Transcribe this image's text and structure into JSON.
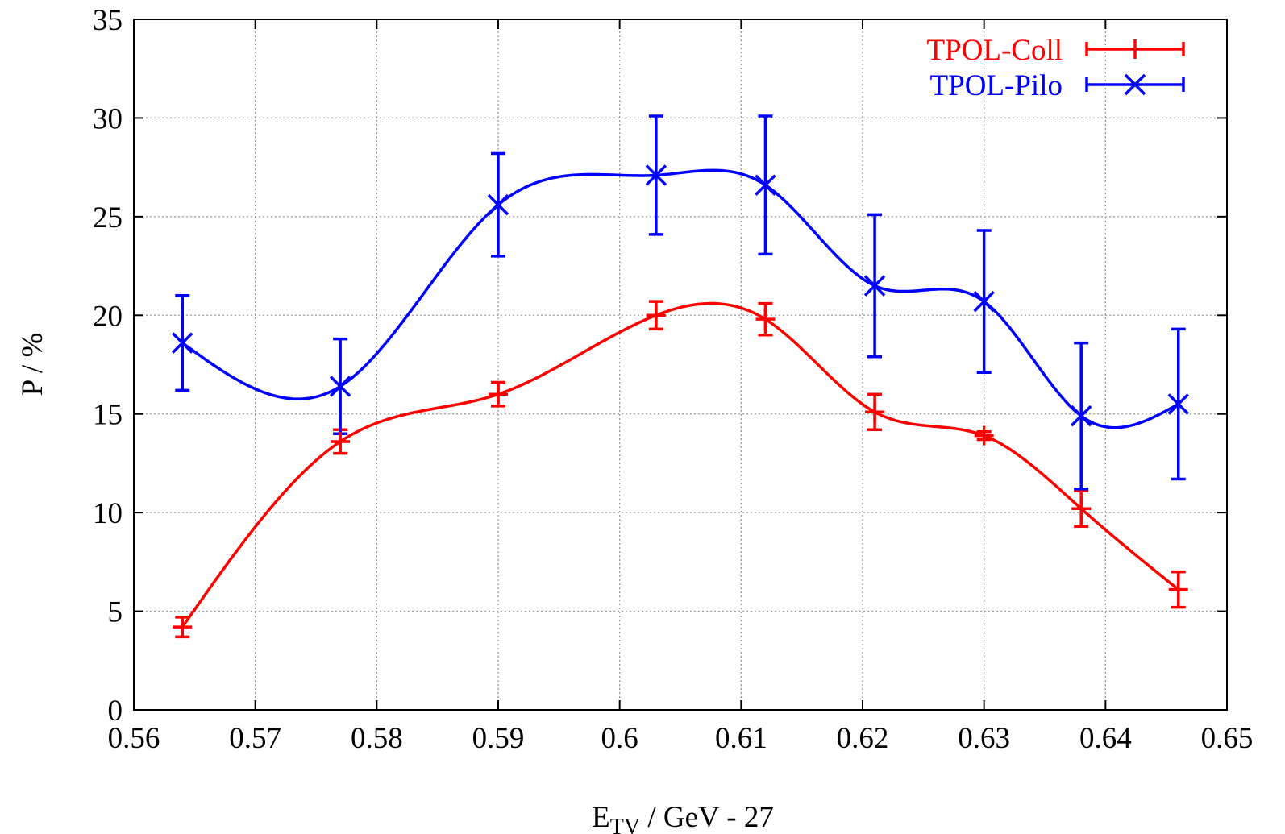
{
  "chart_data": {
    "type": "line",
    "xlabel": {
      "main": "E",
      "sub": "TV",
      "rest": " / GeV - 27"
    },
    "ylabel": "P / %",
    "xlim": [
      0.56,
      0.65
    ],
    "ylim": [
      0,
      35
    ],
    "xticks": [
      0.56,
      0.57,
      0.58,
      0.59,
      0.6,
      0.61,
      0.62,
      0.63,
      0.64,
      0.65
    ],
    "xtick_labels": [
      "0.56",
      "0.57",
      "0.58",
      "0.59",
      "0.6",
      "0.61",
      "0.62",
      "0.63",
      "0.64",
      "0.65"
    ],
    "yticks": [
      0,
      5,
      10,
      15,
      20,
      25,
      30,
      35
    ],
    "ytick_labels": [
      "0",
      "5",
      "10",
      "15",
      "20",
      "25",
      "30",
      "35"
    ],
    "grid": true,
    "legend_position": "top-right",
    "series": [
      {
        "name": "TPOL-Coll",
        "color": "#ff0000",
        "marker": "plus",
        "x": [
          0.564,
          0.577,
          0.59,
          0.603,
          0.612,
          0.621,
          0.63,
          0.638,
          0.646
        ],
        "y": [
          4.2,
          13.6,
          16.0,
          20.0,
          19.8,
          15.1,
          13.9,
          10.2,
          6.1
        ],
        "yerr": [
          0.5,
          0.6,
          0.6,
          0.7,
          0.8,
          0.9,
          0.2,
          0.9,
          0.9
        ]
      },
      {
        "name": "TPOL-Pilo",
        "color": "#0000ff",
        "marker": "cross",
        "x": [
          0.564,
          0.577,
          0.59,
          0.603,
          0.612,
          0.621,
          0.63,
          0.638,
          0.646
        ],
        "y": [
          18.6,
          16.4,
          25.6,
          27.1,
          26.6,
          21.5,
          20.7,
          14.9,
          15.5
        ],
        "yerr": [
          2.4,
          2.4,
          2.6,
          3.0,
          3.5,
          3.6,
          3.6,
          3.7,
          3.8
        ]
      }
    ]
  }
}
